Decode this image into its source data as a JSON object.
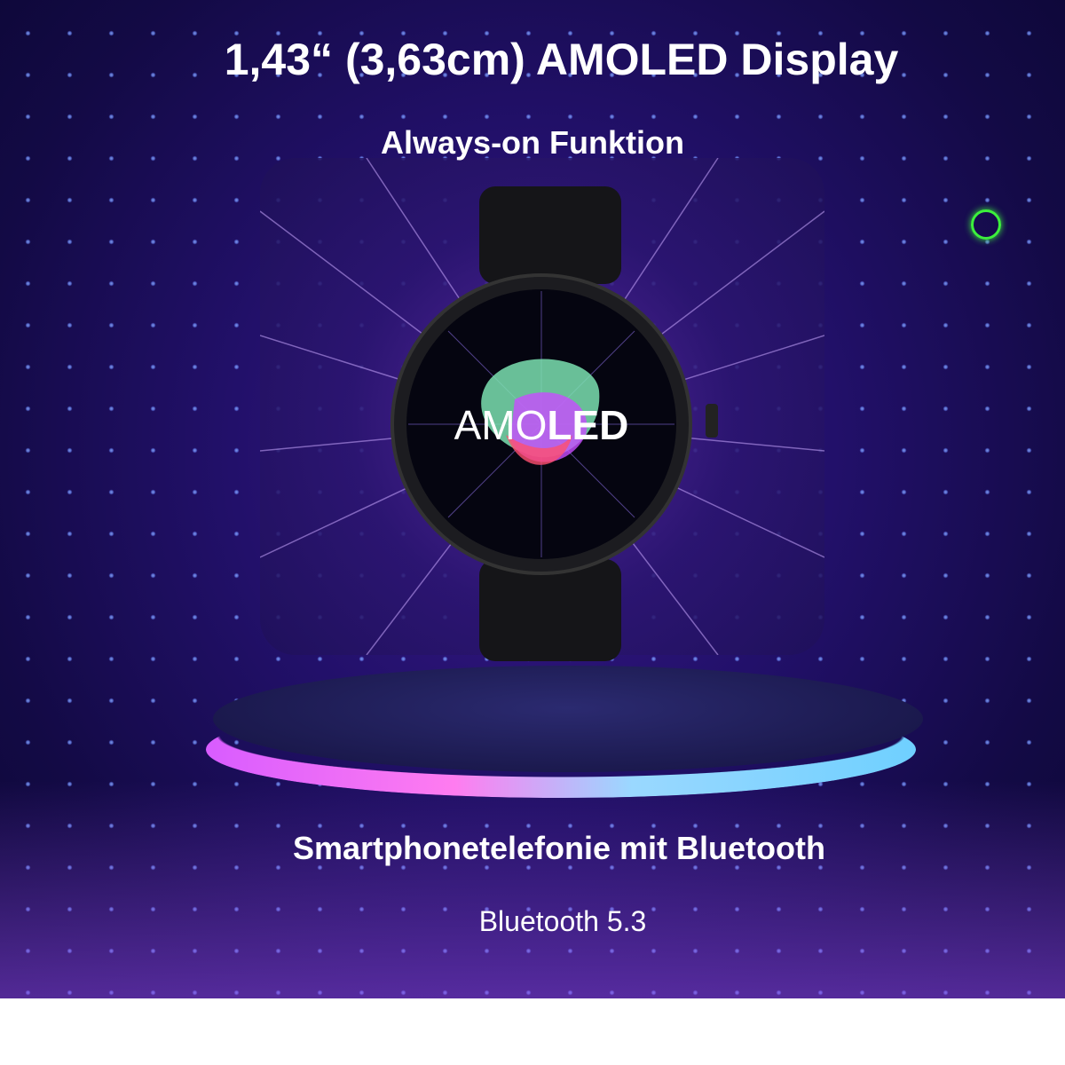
{
  "headline": "1,43“ (3,63cm) AMOLED Display",
  "subheadline": "Always-on Funktion",
  "watch_screen": {
    "label_light": "AMO",
    "label_bold": "LED"
  },
  "feature_title": "Smartphonetelefonie mit Bluetooth",
  "feature_detail": "Bluetooth 5.3",
  "colors": {
    "background": "#1a0c55",
    "accent_ring": "#3cf03c",
    "podium_pink": "#ff7cf0",
    "podium_blue": "#6fd0ff"
  }
}
